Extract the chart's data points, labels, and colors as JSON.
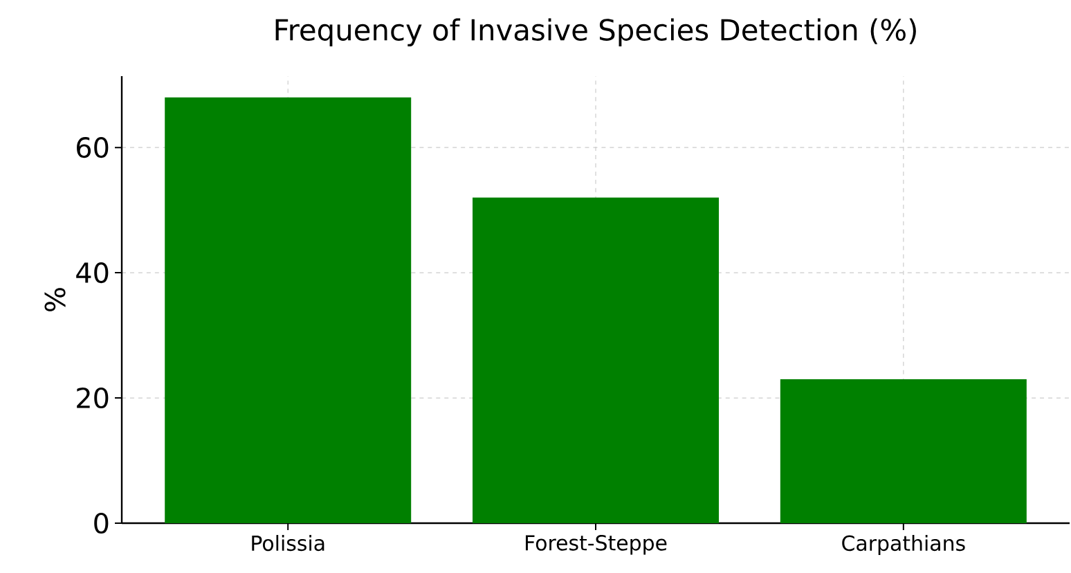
{
  "chart_data": {
    "type": "bar",
    "title": "Frequency of Invasive Species Detection (%)",
    "ylabel": "%",
    "categories": [
      "Polissia",
      "Forest-Steppe",
      "Carpathians"
    ],
    "values": [
      68,
      52,
      23
    ],
    "color": "#008000",
    "ylim": [
      0,
      71.4
    ],
    "yticks": [
      0,
      20,
      40,
      60
    ],
    "grid": true
  }
}
